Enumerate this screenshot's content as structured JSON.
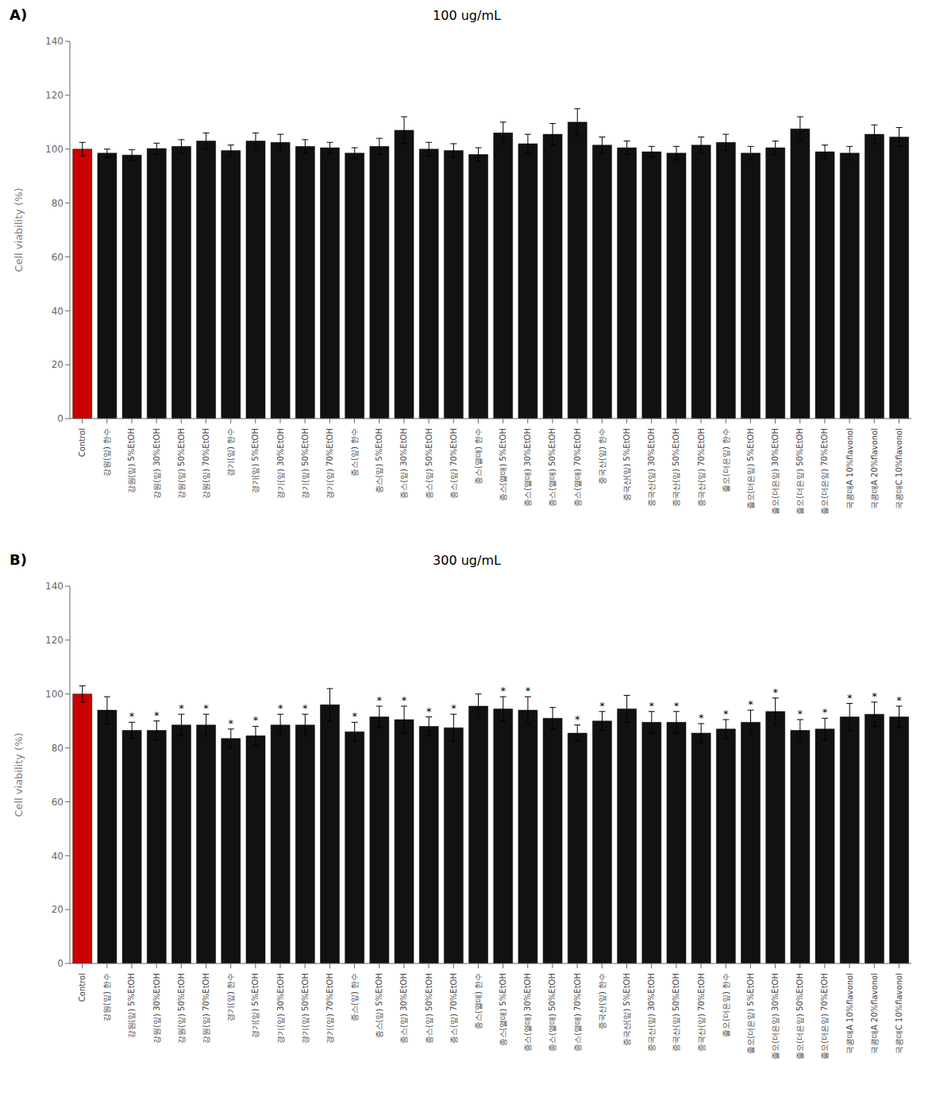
{
  "chart_data": [
    {
      "type": "bar",
      "title": "100 ug/mL",
      "y_label": "Cell viability (%)",
      "categories": [
        "Control",
        "강원(잎) 한수",
        "강원(잎) 5%EtOH",
        "강원(잎) 30%EtOH",
        "강원(잎) 50%EtOH",
        "강원(잎) 70%EtOH",
        "경기(잎) 한수",
        "경기(잎) 5%EtOH",
        "경기(잎) 30%EtOH",
        "경기(잎) 50%EtOH",
        "경기(잎) 70%EtOH",
        "종스(잎) 한수",
        "종스(잎) 5%EtOH",
        "종스(잎) 30%EtOH",
        "종스(잎) 50%EtOH",
        "종스(잎) 70%EtOH",
        "종스(열매) 한수",
        "종스(열매) 5%EtOH",
        "종스(열매) 30%EtOH",
        "종스(열매) 50%EtOH",
        "종스(열매) 70%EtOH",
        "중국산(잎) 한수",
        "중국산(잎) 5%EtOH",
        "중국산(잎) 30%EtOH",
        "중국산(잎) 50%EtOH",
        "중국산(잎) 70%EtOH",
        "졸오(더은잎) 한수",
        "졸오(더은잎) 5%EtOH",
        "졸오(더은잎) 30%EtOH",
        "졸오(더은잎) 50%EtOH",
        "졸오(더은잎) 70%EtOH",
        "국콩매A 10%flavonol",
        "국콩매A 20%flavonol",
        "국콩매C 10%flavonol"
      ],
      "values": [
        100.0,
        98.5,
        97.8,
        100.2,
        101.0,
        103.0,
        99.5,
        103.0,
        102.5,
        101.0,
        100.5,
        98.5,
        101.0,
        107.0,
        100.0,
        99.5,
        98.0,
        106.0,
        102.0,
        105.5,
        110.0,
        101.5,
        100.5,
        99.0,
        98.5,
        101.5,
        102.5,
        98.5,
        100.5,
        107.5,
        99.0,
        98.5,
        105.5,
        104.5
      ],
      "errors": [
        2.5,
        1.5,
        2.0,
        2.0,
        2.5,
        3.0,
        2.0,
        3.0,
        3.0,
        2.5,
        2.0,
        2.0,
        3.0,
        5.0,
        2.5,
        2.5,
        2.5,
        4.0,
        3.5,
        4.0,
        5.0,
        3.0,
        2.5,
        2.0,
        2.5,
        3.0,
        3.0,
        2.5,
        2.5,
        4.5,
        2.5,
        2.5,
        3.5,
        3.5
      ],
      "colors": [
        "#cc0000",
        "#111111",
        "#111111",
        "#111111",
        "#111111",
        "#111111",
        "#111111",
        "#111111",
        "#111111",
        "#111111",
        "#111111",
        "#111111",
        "#111111",
        "#111111",
        "#111111",
        "#111111",
        "#111111",
        "#111111",
        "#111111",
        "#111111",
        "#111111",
        "#111111",
        "#111111",
        "#111111",
        "#111111",
        "#111111",
        "#111111",
        "#111111",
        "#111111",
        "#111111",
        "#111111",
        "#111111",
        "#111111",
        "#111111"
      ],
      "ylim": [
        0,
        140
      ],
      "yticks": [
        0,
        20,
        40,
        60,
        80,
        100,
        120,
        140
      ],
      "grid": false,
      "annotations": [
        {
          "text": "A)"
        }
      ]
    },
    {
      "type": "bar",
      "title": "300 ug/mL",
      "y_label": "Cell viability (%)",
      "categories": [
        "Control",
        "강원(잎) 한수",
        "강원(잎) 5%EtOH",
        "강원(잎) 30%EtOH",
        "강원(잎) 50%EtOH",
        "강원(잎) 70%EtOH",
        "경기(잎) 한수",
        "경기(잎) 5%EtOH",
        "경기(잎) 30%EtOH",
        "경기(잎) 50%EtOH",
        "경기(잎) 70%EtOH",
        "종스(잎) 한수",
        "종스(잎) 5%EtOH",
        "종스(잎) 30%EtOH",
        "종스(잎) 50%EtOH",
        "종스(잎) 70%EtOH",
        "종스(열매) 한수",
        "종스(열매) 5%EtOH",
        "종스(열매) 30%EtOH",
        "종스(열매) 50%EtOH",
        "종스(열매) 70%EtOH",
        "중국산(잎) 한수",
        "중국산(잎) 5%EtOH",
        "중국산(잎) 30%EtOH",
        "중국산(잎) 50%EtOH",
        "중국산(잎) 70%EtOH",
        "졸오(더은잎) 한수",
        "졸오(더은잎) 5%EtOH",
        "졸오(더은잎) 30%EtOH",
        "졸오(더은잎) 50%EtOH",
        "졸오(더은잎) 70%EtOH",
        "국콩매A 10%flavonol",
        "국콩매A 20%flavonol",
        "국콩매C 10%flavonol"
      ],
      "values": [
        100.0,
        94.0,
        86.5,
        86.5,
        88.5,
        88.5,
        83.5,
        84.5,
        88.5,
        88.5,
        96.0,
        86.0,
        91.5,
        90.5,
        88.0,
        87.5,
        95.5,
        94.5,
        94.0,
        91.0,
        85.5,
        90.0,
        94.5,
        89.5,
        89.5,
        85.5,
        87.0,
        89.5,
        93.5,
        86.5,
        87.0,
        91.5,
        92.5,
        91.5
      ],
      "errors": [
        3.0,
        5.0,
        3.0,
        3.5,
        4.0,
        4.0,
        3.5,
        3.5,
        4.0,
        4.0,
        6.0,
        3.5,
        4.0,
        5.0,
        3.5,
        5.0,
        4.5,
        4.5,
        5.0,
        4.0,
        3.0,
        3.5,
        5.0,
        4.0,
        4.0,
        3.5,
        3.5,
        4.5,
        5.0,
        4.0,
        4.0,
        5.0,
        4.5,
        4.0
      ],
      "colors": [
        "#cc0000",
        "#111111",
        "#111111",
        "#111111",
        "#111111",
        "#111111",
        "#111111",
        "#111111",
        "#111111",
        "#111111",
        "#111111",
        "#111111",
        "#111111",
        "#111111",
        "#111111",
        "#111111",
        "#111111",
        "#111111",
        "#111111",
        "#111111",
        "#111111",
        "#111111",
        "#111111",
        "#111111",
        "#111111",
        "#111111",
        "#111111",
        "#111111",
        "#111111",
        "#111111",
        "#111111",
        "#111111",
        "#111111",
        "#111111"
      ],
      "ylim": [
        0,
        140
      ],
      "yticks": [
        0,
        20,
        40,
        60,
        80,
        100,
        120,
        140
      ],
      "grid": false,
      "annotations": [
        {
          "text": "B)"
        },
        {
          "text": "*",
          "x": "강원(잎) 5%EtOH"
        },
        {
          "text": "*",
          "x": "강원(잎) 30%EtOH"
        },
        {
          "text": "*",
          "x": "강원(잎) 50%EtOH"
        },
        {
          "text": "*",
          "x": "강원(잎) 70%EtOH"
        },
        {
          "text": "*",
          "x": "경기(잎) 한수"
        },
        {
          "text": "*",
          "x": "경기(잎) 5%EtOH"
        },
        {
          "text": "*",
          "x": "경기(잎) 30%EtOH"
        },
        {
          "text": "*",
          "x": "경기(잎) 50%EtOH"
        },
        {
          "text": "*",
          "x": "종스(잎) 한수"
        },
        {
          "text": "*",
          "x": "종스(잎) 5%EtOH"
        },
        {
          "text": "*",
          "x": "종스(잎) 30%EtOH"
        },
        {
          "text": "*",
          "x": "종스(잎) 50%EtOH"
        },
        {
          "text": "*",
          "x": "종스(잎) 70%EtOH"
        },
        {
          "text": "*",
          "x": "종스(열매) 5%EtOH"
        },
        {
          "text": "*",
          "x": "종스(열매) 30%EtOH"
        },
        {
          "text": "*",
          "x": "종스(열매) 70%EtOH"
        },
        {
          "text": "*",
          "x": "중국산(잎) 한수"
        },
        {
          "text": "*",
          "x": "중국산(잎) 30%EtOH"
        },
        {
          "text": "*",
          "x": "중국산(잎) 50%EtOH"
        },
        {
          "text": "*",
          "x": "중국산(잎) 70%EtOH"
        },
        {
          "text": "*",
          "x": "졸오(더은잎) 한수"
        },
        {
          "text": "*",
          "x": "졸오(더은잎) 5%EtOH"
        },
        {
          "text": "*",
          "x": "졸오(더은잎) 30%EtOH"
        },
        {
          "text": "*",
          "x": "졸오(더은잎) 50%EtOH"
        },
        {
          "text": "*",
          "x": "졸오(더은잎) 70%EtOH"
        },
        {
          "text": "*",
          "x": "국콩매A 10%flavonol"
        },
        {
          "text": "*",
          "x": "국콩매A 20%flavonol"
        },
        {
          "text": "*",
          "x": "국콩매C 10%flavonol"
        }
      ]
    }
  ]
}
